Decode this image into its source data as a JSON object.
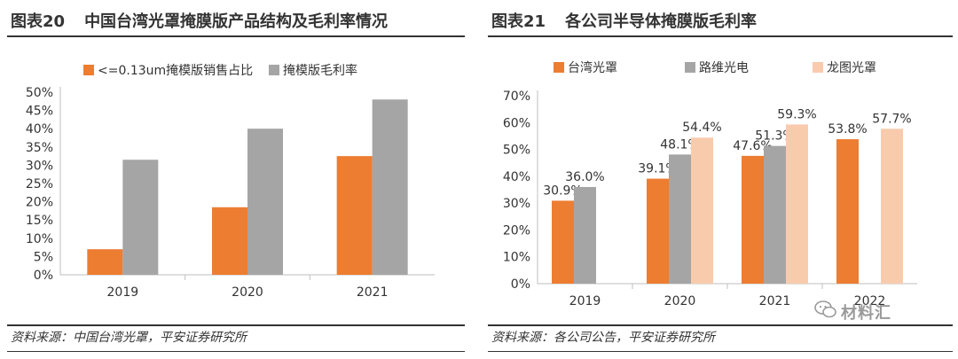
{
  "charts": [
    {
      "figure_label": "图表20",
      "figure_title": "中国台湾光罩掩膜版产品结构及毛利率情况",
      "source": "资料来源：中国台湾光罩，平安证券研究所"
    },
    {
      "figure_label": "图表21",
      "figure_title": "各公司半导体掩膜版毛利率",
      "source": "资料来源：各公司公告，平安证券研究所"
    }
  ],
  "watermark": "材料汇",
  "colors": {
    "orange": "#ED7D31",
    "gray": "#A5A5A5",
    "peach": "#F8CBAD"
  },
  "chart_data": [
    {
      "type": "bar",
      "title": "中国台湾光罩掩膜版产品结构及毛利率情况",
      "categories": [
        "2019",
        "2020",
        "2021"
      ],
      "series": [
        {
          "name": "<=0.13um掩模版销售占比",
          "values": [
            7,
            18.5,
            32.5
          ],
          "color": "#ED7D31"
        },
        {
          "name": "掩模版毛利率",
          "values": [
            31.5,
            40,
            48
          ],
          "color": "#A5A5A5"
        }
      ],
      "ylim": [
        0,
        50
      ],
      "yticks": [
        "0%",
        "5%",
        "10%",
        "15%",
        "20%",
        "25%",
        "30%",
        "35%",
        "40%",
        "45%",
        "50%"
      ],
      "legend": "top-center",
      "grid": false
    },
    {
      "type": "bar",
      "title": "各公司半导体掩膜版毛利率",
      "categories": [
        "2019",
        "2020",
        "2021",
        "2022"
      ],
      "series": [
        {
          "name": "台湾光罩",
          "values": [
            30.9,
            39.1,
            47.6,
            53.8
          ],
          "labels": [
            "30.9%",
            "39.1%",
            "47.6%",
            "53.8%"
          ],
          "color": "#ED7D31"
        },
        {
          "name": "路维光电",
          "values": [
            36.0,
            48.1,
            51.3,
            null
          ],
          "labels": [
            "36.0%",
            "48.1%",
            "51.3%",
            ""
          ],
          "color": "#A5A5A5"
        },
        {
          "name": "龙图光罩",
          "values": [
            null,
            54.4,
            59.3,
            57.7
          ],
          "labels": [
            "",
            "54.4%",
            "59.3%",
            "57.7%"
          ],
          "color": "#F8CBAD"
        }
      ],
      "ylim": [
        0,
        70
      ],
      "yticks": [
        "0%",
        "10%",
        "20%",
        "30%",
        "40%",
        "50%",
        "60%",
        "70%"
      ],
      "legend": "top",
      "grid": false
    }
  ]
}
